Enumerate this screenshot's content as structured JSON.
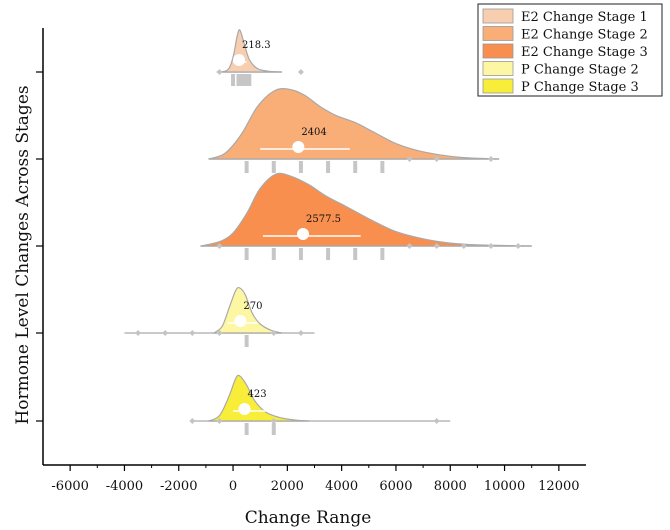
{
  "chart_data": {
    "type": "ridgeline",
    "title": "",
    "xlabel": "Change Range",
    "ylabel": "Hormone Level Changes Across Stages",
    "xlim": [
      -7000,
      13000
    ],
    "xticks": [
      -6000,
      -4000,
      -2000,
      0,
      2000,
      4000,
      6000,
      8000,
      10000,
      12000
    ],
    "legend_position": "top-right",
    "series": [
      {
        "name": "E2 Change Stage 1",
        "color": "#f7ceb0",
        "median": 218.3,
        "median_label": "218.3",
        "range": [
          -600,
          1800
        ],
        "iqr": [
          0,
          500
        ],
        "density_points": [
          [
            -600,
            0
          ],
          [
            -200,
            0.05
          ],
          [
            0,
            0.35
          ],
          [
            150,
            0.85
          ],
          [
            250,
            1.0
          ],
          [
            400,
            0.7
          ],
          [
            600,
            0.3
          ],
          [
            900,
            0.08
          ],
          [
            1300,
            0.02
          ],
          [
            1800,
            0
          ]
        ],
        "outliers": [
          -500,
          2500
        ],
        "rug": [
          0,
          200,
          300,
          400,
          500,
          600
        ]
      },
      {
        "name": "E2 Change Stage 2",
        "color": "#f9ae78",
        "median": 2404,
        "median_label": "2404",
        "range": [
          -900,
          9800
        ],
        "iqr": [
          1000,
          4300
        ],
        "density_points": [
          [
            -900,
            0
          ],
          [
            -300,
            0.08
          ],
          [
            300,
            0.35
          ],
          [
            900,
            0.75
          ],
          [
            1500,
            0.97
          ],
          [
            2000,
            1.0
          ],
          [
            2600,
            0.92
          ],
          [
            3200,
            0.75
          ],
          [
            3800,
            0.62
          ],
          [
            4500,
            0.52
          ],
          [
            5200,
            0.38
          ],
          [
            6000,
            0.22
          ],
          [
            6800,
            0.12
          ],
          [
            7600,
            0.06
          ],
          [
            8500,
            0.02
          ],
          [
            9800,
            0
          ]
        ],
        "outliers": [
          6500,
          7500,
          9500
        ],
        "rug": [
          500,
          1500,
          2500,
          3500,
          4500,
          5500
        ]
      },
      {
        "name": "E2 Change Stage 3",
        "color": "#f88f4e",
        "median": 2577.5,
        "median_label": "2577.5",
        "range": [
          -1200,
          11000
        ],
        "iqr": [
          1100,
          4700
        ],
        "density_points": [
          [
            -1200,
            0
          ],
          [
            -500,
            0.06
          ],
          [
            0,
            0.18
          ],
          [
            500,
            0.45
          ],
          [
            1000,
            0.8
          ],
          [
            1600,
            1.0
          ],
          [
            2200,
            0.96
          ],
          [
            2800,
            0.85
          ],
          [
            3400,
            0.7
          ],
          [
            4000,
            0.58
          ],
          [
            4600,
            0.46
          ],
          [
            5200,
            0.34
          ],
          [
            6000,
            0.2
          ],
          [
            7000,
            0.1
          ],
          [
            8000,
            0.04
          ],
          [
            9000,
            0.015
          ],
          [
            11000,
            0
          ]
        ],
        "outliers": [
          -500,
          6500,
          7500,
          8500,
          9500,
          10500
        ],
        "rug": [
          500,
          1500,
          2500,
          3500,
          4500,
          5500
        ]
      },
      {
        "name": "P Change Stage 2",
        "color": "#fdf7a3",
        "median": 270,
        "median_label": "270",
        "range": [
          -4000,
          3000
        ],
        "iqr": [
          -200,
          900
        ],
        "density_points": [
          [
            -700,
            0
          ],
          [
            -400,
            0.15
          ],
          [
            -150,
            0.55
          ],
          [
            100,
            0.95
          ],
          [
            250,
            1.0
          ],
          [
            450,
            0.85
          ],
          [
            700,
            0.45
          ],
          [
            1000,
            0.2
          ],
          [
            1400,
            0.06
          ],
          [
            1800,
            0
          ]
        ],
        "outliers": [
          -3500,
          -2500,
          -1500,
          -500,
          1500,
          2500
        ],
        "rug": [
          500
        ]
      },
      {
        "name": "P Change Stage 3",
        "color": "#f8ee3a",
        "median": 423,
        "median_label": "423",
        "range": [
          -1500,
          8000
        ],
        "iqr": [
          0,
          1200
        ],
        "density_points": [
          [
            -900,
            0
          ],
          [
            -500,
            0.12
          ],
          [
            -150,
            0.55
          ],
          [
            100,
            0.95
          ],
          [
            250,
            1.0
          ],
          [
            500,
            0.8
          ],
          [
            800,
            0.45
          ],
          [
            1200,
            0.2
          ],
          [
            1700,
            0.08
          ],
          [
            2300,
            0.02
          ],
          [
            2800,
            0
          ]
        ],
        "outliers": [
          -1500,
          -500,
          1500,
          7500
        ],
        "rug": [
          500,
          1500
        ]
      }
    ]
  }
}
